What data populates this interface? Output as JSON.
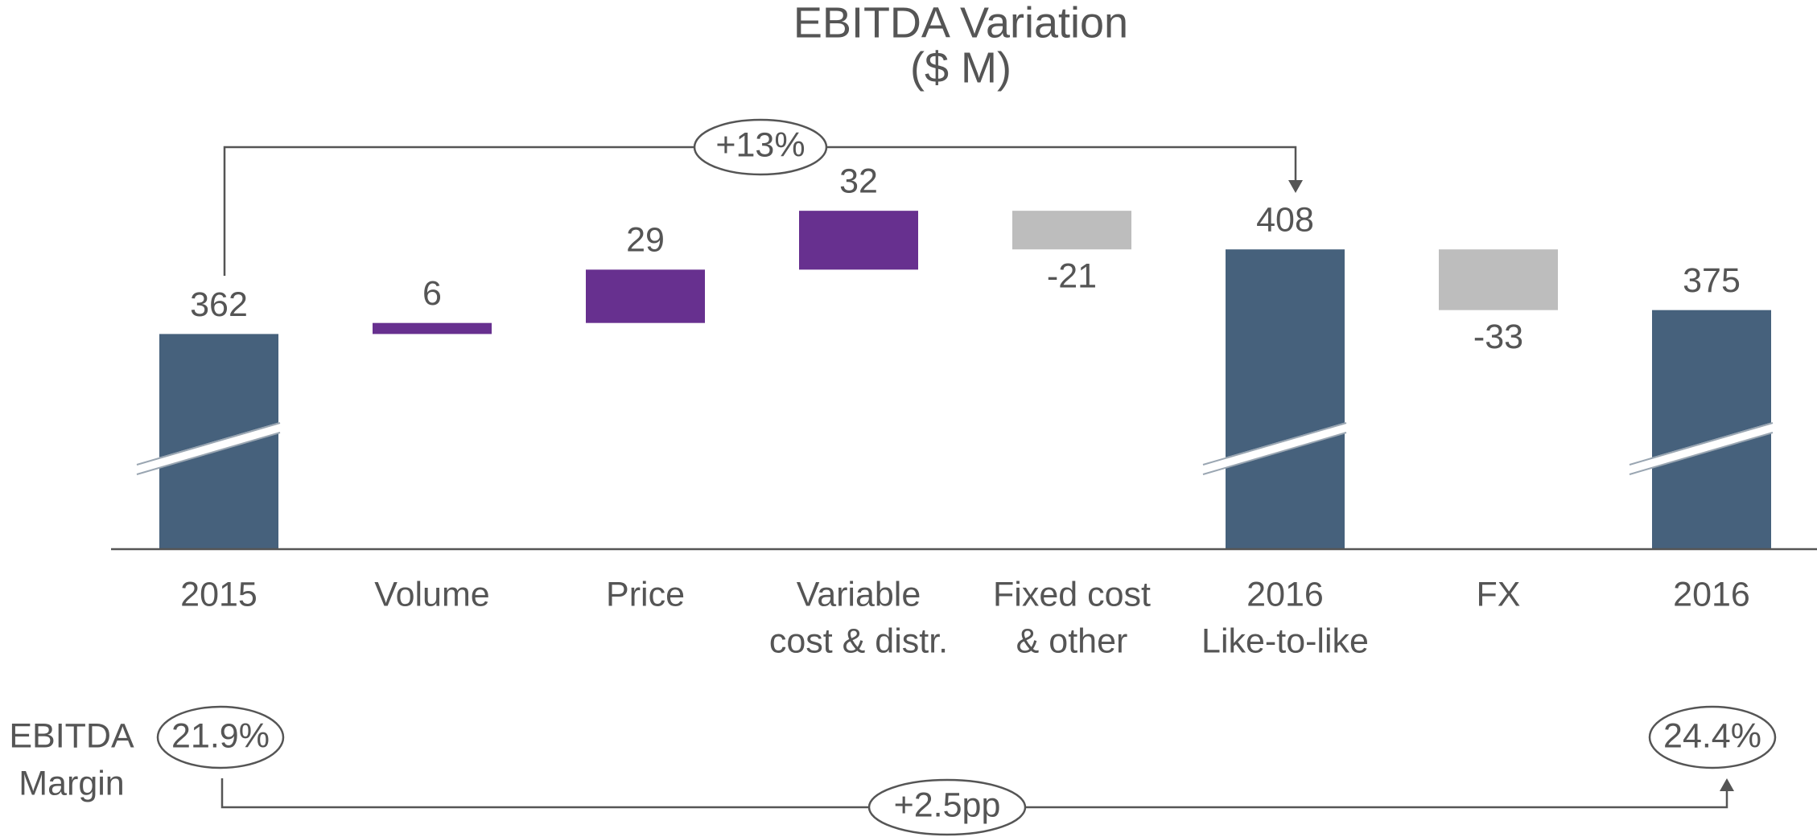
{
  "chart_data": {
    "type": "waterfall",
    "title": "EBITDA Variation",
    "subtitle": "($ M)",
    "categories": [
      [
        "2015"
      ],
      [
        "Volume"
      ],
      [
        "Price"
      ],
      [
        "Variable",
        "cost & distr."
      ],
      [
        "Fixed cost",
        "& other"
      ],
      [
        "2016",
        "Like-to-like"
      ],
      [
        "FX"
      ],
      [
        "2016"
      ]
    ],
    "values": [
      362,
      6,
      29,
      32,
      -21,
      408,
      -33,
      375
    ],
    "kinds": [
      "total",
      "delta",
      "delta",
      "delta",
      "delta",
      "total",
      "delta",
      "total"
    ],
    "colors": {
      "total": "#46617c",
      "increase": "#67308f",
      "decrease": "#bdbdbd"
    },
    "ylim": [
      245,
      440
    ],
    "broken_axis": true,
    "growth_label": "+13%",
    "margin": {
      "label": [
        "EBITDA",
        "Margin"
      ],
      "values": [
        21.9,
        24.4
      ],
      "value_labels": [
        "21.9%",
        "24.4%"
      ],
      "change_label": "+2.5pp"
    }
  }
}
